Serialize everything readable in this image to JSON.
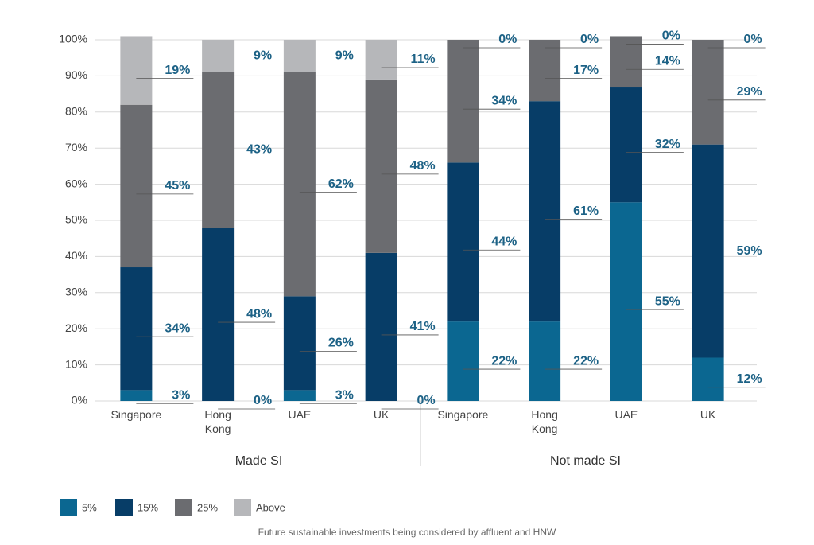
{
  "chart_data": {
    "type": "stacked_bar",
    "caption": "Future sustainable investments being considered by affluent and HNW",
    "categories": [
      "Singapore",
      "Hong Kong",
      "UAE",
      "UK",
      "Singapore",
      "Hong Kong",
      "UAE",
      "UK"
    ],
    "group_labels": [
      "Made SI",
      "Not made SI"
    ],
    "series": [
      {
        "name": "5%",
        "color": "#0b6791",
        "values": [
          3,
          0,
          3,
          0,
          22,
          22,
          55,
          12
        ],
        "value_labels": [
          "3%",
          "0%",
          "3%",
          "0%",
          "22%",
          "22%",
          "55%",
          "12%"
        ]
      },
      {
        "name": "15%",
        "color": "#073d67",
        "values": [
          34,
          48,
          26,
          41,
          44,
          61,
          32,
          59
        ],
        "value_labels": [
          "34%",
          "48%",
          "26%",
          "41%",
          "44%",
          "61%",
          "32%",
          "59%"
        ]
      },
      {
        "name": "25%",
        "color": "#6b6c70",
        "values": [
          45,
          43,
          62,
          48,
          34,
          17,
          14,
          29
        ],
        "value_labels": [
          "45%",
          "43%",
          "62%",
          "48%",
          "34%",
          "17%",
          "14%",
          "29%"
        ]
      },
      {
        "name": "Above",
        "color": "#b6b7ba",
        "values": [
          19,
          9,
          9,
          11,
          0,
          0,
          0,
          0
        ],
        "value_labels": [
          "19%",
          "9%",
          "9%",
          "11%",
          "0%",
          "0%",
          "0%",
          "0%"
        ]
      }
    ],
    "ylim": [
      0,
      100
    ],
    "yticks": [
      {
        "value": 0,
        "label": "0%"
      },
      {
        "value": 10,
        "label": "10%"
      },
      {
        "value": 20,
        "label": "20%"
      },
      {
        "value": 30,
        "label": "30%"
      },
      {
        "value": 40,
        "label": "40%"
      },
      {
        "value": 50,
        "label": "50%"
      },
      {
        "value": 60,
        "label": "60%"
      },
      {
        "value": 70,
        "label": "70%"
      },
      {
        "value": 80,
        "label": "80%"
      },
      {
        "value": 90,
        "label": "90%"
      },
      {
        "value": 100,
        "label": "100%"
      }
    ],
    "grid": true
  }
}
